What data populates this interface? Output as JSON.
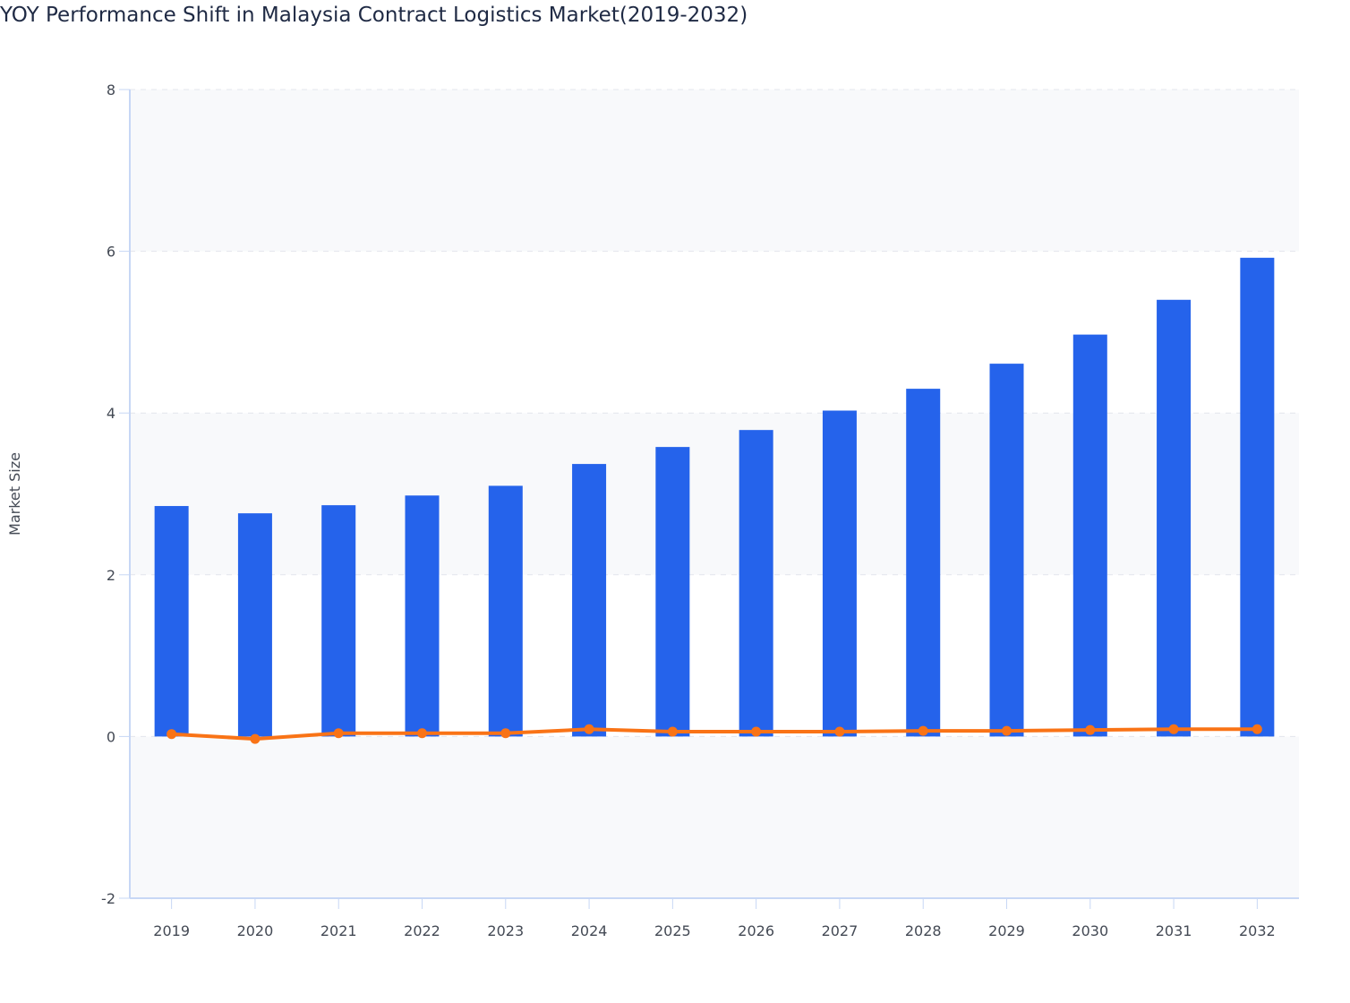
{
  "chart_data": {
    "type": "bar+line",
    "title": "YOY Performance Shift in Malaysia Contract Logistics Market(2019-2032)",
    "xlabel": "",
    "ylabel": "Market Size",
    "ylim": [
      -2,
      8
    ],
    "yticks": [
      -2,
      0,
      2,
      4,
      6,
      8
    ],
    "grid": true,
    "categories": [
      "2019",
      "2020",
      "2021",
      "2022",
      "2023",
      "2024",
      "2025",
      "2026",
      "2027",
      "2028",
      "2029",
      "2030",
      "2031",
      "2032"
    ],
    "series": [
      {
        "type": "bar",
        "color": "#2563eb",
        "values": [
          2.85,
          2.76,
          2.86,
          2.98,
          3.1,
          3.37,
          3.58,
          3.79,
          4.03,
          4.3,
          4.61,
          4.97,
          5.4,
          5.92
        ]
      },
      {
        "type": "line",
        "color": "#f97316",
        "values": [
          0.03,
          -0.03,
          0.04,
          0.04,
          0.04,
          0.09,
          0.06,
          0.06,
          0.06,
          0.07,
          0.07,
          0.08,
          0.09,
          0.09
        ]
      }
    ]
  }
}
